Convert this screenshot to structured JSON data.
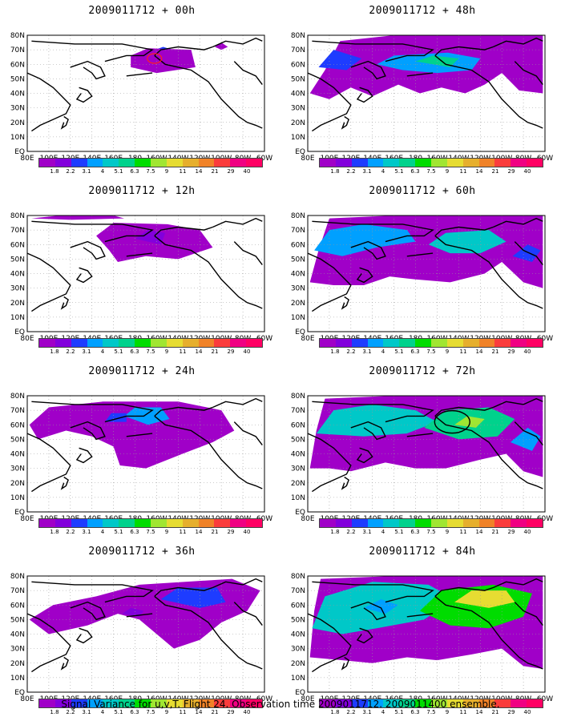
{
  "figure": {
    "caption": "Signal Variance for u,v,T. Flight 24. Observation time 2009011712. 2009011400 ensemble."
  },
  "panels": [
    {
      "id": "p00",
      "title": "2009011712 + 00h",
      "intensity": 0
    },
    {
      "id": "p48",
      "title": "2009011712 + 48h",
      "intensity": 4
    },
    {
      "id": "p12",
      "title": "2009011712 + 12h",
      "intensity": 1
    },
    {
      "id": "p60",
      "title": "2009011712 + 60h",
      "intensity": 5
    },
    {
      "id": "p24",
      "title": "2009011712 + 24h",
      "intensity": 2
    },
    {
      "id": "p72",
      "title": "2009011712 + 72h",
      "intensity": 6
    },
    {
      "id": "p36",
      "title": "2009011712 + 36h",
      "intensity": 3
    },
    {
      "id": "p84",
      "title": "2009011712 + 84h",
      "intensity": 7
    }
  ],
  "lon_labels": [
    "80E",
    "100E",
    "120E",
    "140E",
    "160E",
    "180",
    "160W",
    "140W",
    "120W",
    "100W",
    "80W",
    "60W"
  ],
  "lat_labels": [
    "80N",
    "70N",
    "60N",
    "50N",
    "40N",
    "30N",
    "20N",
    "10N",
    "EQ"
  ],
  "colorbar": {
    "labels": [
      "1.8",
      "2.2",
      "3.1",
      "4",
      "5.1",
      "6.3",
      "7.5",
      "9",
      "11",
      "14",
      "21",
      "29",
      "40"
    ],
    "colors": [
      "#a000c8",
      "#8200dc",
      "#1e3cff",
      "#00a0ff",
      "#00c8c8",
      "#00d28c",
      "#00dc00",
      "#a0e632",
      "#e6dc32",
      "#e6af2d",
      "#f08228",
      "#fa3c3c",
      "#f00082"
    ]
  }
}
